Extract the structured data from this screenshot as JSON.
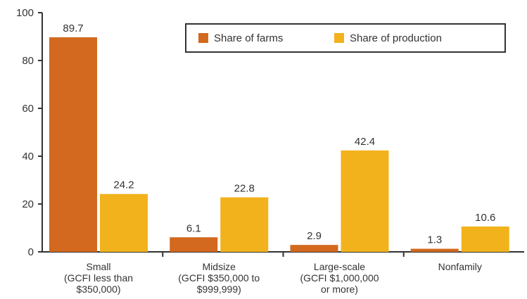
{
  "chart_data": {
    "type": "bar",
    "title": "",
    "xlabel": "",
    "ylabel": "",
    "ylim": [
      0,
      100
    ],
    "yticks": [
      0,
      20,
      40,
      60,
      80,
      100
    ],
    "grid": false,
    "legend_position": "top-right",
    "categories": [
      [
        "Small",
        "(GCFI less than",
        "$350,000)"
      ],
      [
        "Midsize",
        "(GCFI $350,000 to",
        "$999,999)"
      ],
      [
        "Large-scale",
        "(GCFI $1,000,000",
        "or more)"
      ],
      [
        "Nonfamily"
      ]
    ],
    "series": [
      {
        "name": "Share of farms",
        "color": "#d2691e",
        "values": [
          89.7,
          6.1,
          2.9,
          1.3
        ]
      },
      {
        "name": "Share of production",
        "color": "#f2b21c",
        "values": [
          24.2,
          22.8,
          42.4,
          10.6
        ]
      }
    ]
  }
}
